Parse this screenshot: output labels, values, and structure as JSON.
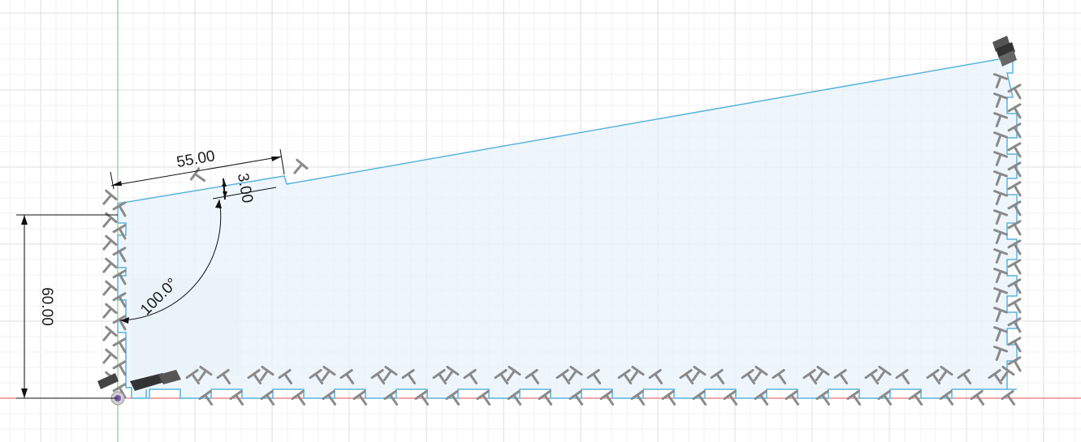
{
  "sketch": {
    "dimensions": {
      "top_length": "55.00",
      "notch_depth": "3.00",
      "height": "60.00",
      "angle": "100.0°"
    },
    "colors": {
      "grid_minor": "#f0f0f0",
      "grid_major": "#dcdcdc",
      "profile_fill": "#e8f3fb",
      "profile_line": "#5ab4dc",
      "selection_fill": "#eef0e8",
      "axis_x": "#e05050",
      "axis_y": "#70c070",
      "dimension_line": "#111111",
      "constraint_glyph": "#8a8a8a"
    },
    "icons": {
      "origin": "origin-icon",
      "constraint": "perpendicular-constraint-icon",
      "fix": "fix-constraint-icon"
    }
  }
}
